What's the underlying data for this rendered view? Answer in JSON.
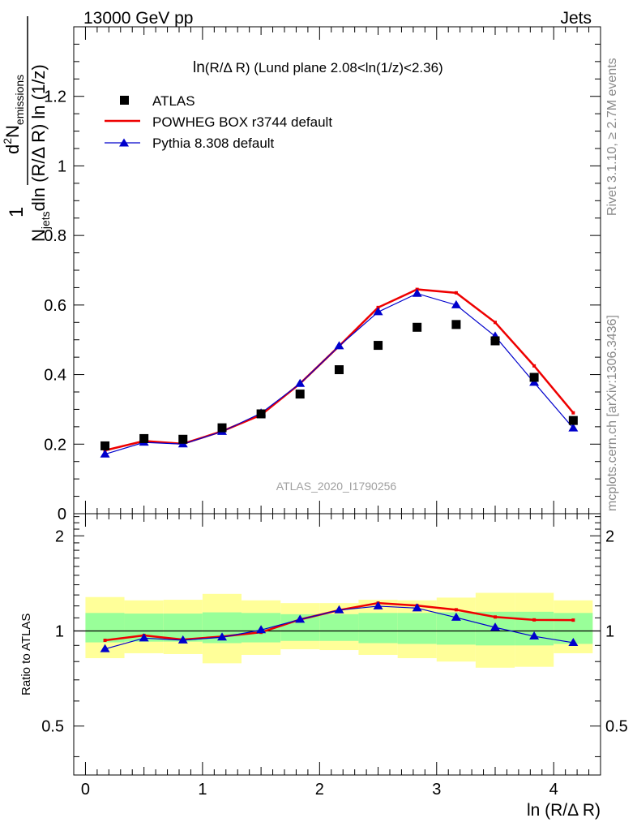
{
  "header": {
    "left": "13000 GeV pp",
    "right": "Jets"
  },
  "side_texts": {
    "rivet": "Rivet 3.1.10, ≥ 2.7M events",
    "mcplots": "mcplots.cern.ch [arXiv:1306.3436]"
  },
  "watermark": "ATLAS_2020_I1790256",
  "colors": {
    "powheg": "#ee0000",
    "pythia": "#0000cc",
    "atlas": "#000000",
    "band_inner": "#99ff99",
    "band_outer": "#ffff99"
  },
  "chart_data": [
    {
      "type": "scatter",
      "title": "ln(R/Δ R) (Lund plane 2.08<ln(1/z)<2.36)",
      "title_parts": {
        "main": "ln",
        "sub": "(R/Δ R)",
        "rest": " (Lund plane 2.08<ln(1/z)<2.36)"
      },
      "ylabel": "1/N_jets d²N_emissions / dln(R/Δ R) ln(1/z)",
      "ylabel_parts": {
        "num_one": "1",
        "num_d": "d",
        "num_sup": "2",
        "num_N": "N",
        "num_sub": "emissions",
        "den_N": "N",
        "den_sub": "jets",
        "den_rest": "dln (R/Δ R) ln (1/z)"
      },
      "xlim": [
        -0.1,
        4.4
      ],
      "ylim": [
        0,
        1.4
      ],
      "yticks": [
        0,
        0.2,
        0.4,
        0.6,
        0.8,
        1,
        1.2
      ],
      "ytick_labels": [
        "0",
        "0.2",
        "0.4",
        "0.6",
        "0.8",
        "1",
        "1.2"
      ],
      "legend_position": "top-left",
      "x": [
        0.167,
        0.5,
        0.833,
        1.167,
        1.5,
        1.833,
        2.167,
        2.5,
        2.833,
        3.167,
        3.5,
        3.833,
        4.167
      ],
      "series": [
        {
          "name": "ATLAS",
          "style": "markers",
          "values": [
            0.195,
            0.216,
            0.214,
            0.247,
            0.287,
            0.344,
            0.414,
            0.484,
            0.536,
            0.544,
            0.497,
            0.392,
            0.268
          ]
        },
        {
          "name": "POWHEG BOX r3744 default",
          "style": "line",
          "values": [
            0.182,
            0.209,
            0.201,
            0.237,
            0.284,
            0.374,
            0.482,
            0.593,
            0.645,
            0.635,
            0.55,
            0.425,
            0.29
          ]
        },
        {
          "name": "Pythia 8.308 default",
          "style": "line-triangle",
          "values": [
            0.171,
            0.205,
            0.2,
            0.236,
            0.289,
            0.374,
            0.482,
            0.58,
            0.633,
            0.6,
            0.51,
            0.377,
            0.246
          ]
        }
      ]
    },
    {
      "type": "line",
      "xlabel": "ln (R/Δ R)",
      "ylabel": "Ratio to ATLAS",
      "xlim": [
        -0.1,
        4.4
      ],
      "ylim": [
        0.35,
        2.35
      ],
      "log_y": true,
      "xticks": [
        0,
        1,
        2,
        3,
        4
      ],
      "xtick_labels": [
        "0",
        "1",
        "2",
        "3",
        "4"
      ],
      "yticks": [
        0.5,
        1,
        2
      ],
      "ytick_labels": [
        "0.5",
        "1",
        "2"
      ],
      "x_edges": [
        0,
        0.333,
        0.667,
        1.0,
        1.333,
        1.667,
        2.0,
        2.333,
        2.667,
        3.0,
        3.333,
        3.667,
        4.0,
        4.333
      ],
      "band_inner": {
        "low": [
          0.92,
          0.925,
          0.925,
          0.915,
          0.92,
          0.93,
          0.93,
          0.915,
          0.91,
          0.905,
          0.9,
          0.9,
          0.91
        ],
        "high": [
          1.14,
          1.135,
          1.135,
          1.145,
          1.14,
          1.13,
          1.13,
          1.14,
          1.14,
          1.145,
          1.15,
          1.15,
          1.14
        ]
      },
      "band_outer": {
        "low": [
          0.82,
          0.85,
          0.845,
          0.79,
          0.84,
          0.875,
          0.87,
          0.84,
          0.82,
          0.8,
          0.765,
          0.77,
          0.85
        ],
        "high": [
          1.28,
          1.25,
          1.255,
          1.31,
          1.25,
          1.225,
          1.225,
          1.255,
          1.25,
          1.275,
          1.32,
          1.32,
          1.25
        ]
      },
      "series": [
        {
          "name": "POWHEG BOX r3744 default",
          "values": [
            0.934,
            0.968,
            0.939,
            0.96,
            0.99,
            1.087,
            1.164,
            1.225,
            1.203,
            1.167,
            1.107,
            1.084,
            1.082
          ]
        },
        {
          "name": "Pythia 8.308 default",
          "values": [
            0.877,
            0.949,
            0.935,
            0.955,
            1.007,
            1.087,
            1.164,
            1.198,
            1.181,
            1.103,
            1.026,
            0.962,
            0.918
          ]
        }
      ]
    }
  ]
}
